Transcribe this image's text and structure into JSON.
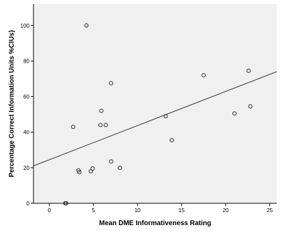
{
  "chart_data": {
    "type": "scatter",
    "title": "",
    "xlabel": "Mean DME Informativeness Rating",
    "ylabel": "Percentage Correct Information Units %CIUs)",
    "xlim": [
      -1.8,
      25.8
    ],
    "ylim": [
      0,
      112
    ],
    "xticks": [
      0,
      5,
      10,
      15,
      20,
      25
    ],
    "yticks": [
      0,
      20,
      40,
      60,
      80,
      100
    ],
    "grid": false,
    "background_color": "#f0f0f0",
    "marker_color": "#333333",
    "series": [
      {
        "x": [
          1.8,
          1.9,
          2.7,
          3.3,
          3.4,
          4.2,
          4.7,
          4.9,
          5.8,
          5.9,
          6.4,
          7.0,
          7.0,
          8.0,
          13.2,
          13.9,
          17.5,
          21.0,
          22.6,
          22.8
        ],
        "y": [
          0,
          0,
          43,
          18.5,
          17.5,
          100,
          18,
          19.5,
          44,
          52,
          44,
          67.5,
          23.5,
          20,
          49,
          35.5,
          72,
          50.5,
          74.5,
          54.5
        ]
      }
    ],
    "fit_line": {
      "slope": 1.92,
      "intercept": 24.5
    }
  }
}
